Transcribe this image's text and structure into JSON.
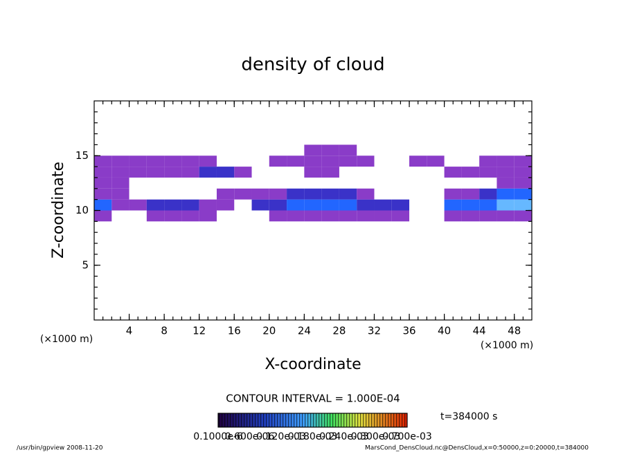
{
  "chart_data": {
    "type": "contour",
    "title": "density of cloud",
    "x_label": "X-coordinate",
    "y_label": "Z-coordinate",
    "x_unit": "(×1000 m)",
    "y_unit": "(×1000 m)",
    "contour_interval": "CONTOUR INTERVAL = 1.000E-04",
    "time_label": "t=384000 s",
    "footer_left": "/usr/bin/gpview  2008-11-20",
    "footer_right": "MarsCond_DensCloud.nc@DensCloud,x=0:50000,z=0:20000,t=384000",
    "xlim": [
      0,
      50
    ],
    "ylim": [
      0,
      20
    ],
    "xticks": [
      4,
      8,
      12,
      16,
      20,
      24,
      28,
      32,
      36,
      40,
      44,
      48
    ],
    "yticks": [
      5,
      10,
      15
    ],
    "x_edges": [
      0,
      2,
      4,
      6,
      8,
      10,
      12,
      14,
      16,
      18,
      20,
      22,
      24,
      26,
      28,
      30,
      32,
      34,
      36,
      38,
      40,
      42,
      44,
      46,
      48,
      50
    ],
    "y_edges": [
      9,
      10,
      11,
      12,
      13,
      14,
      15,
      16
    ],
    "levels": [
      0.0001,
      0.0002,
      0.0003,
      0.0004
    ],
    "level_colors": [
      "#8a3cc8",
      "#3a32c8",
      "#2266ff",
      "#66b8ff"
    ],
    "z": [
      [
        0.0001,
        null,
        null,
        0.0001,
        0.0001,
        0.0001,
        0.0001,
        null,
        null,
        null,
        0.0001,
        0.0001,
        0.0001,
        0.0001,
        0.0001,
        0.0001,
        0.0001,
        0.0001,
        null,
        null,
        0.0001,
        0.0001,
        0.0001,
        0.0001,
        0.0001
      ],
      [
        0.0003,
        0.0001,
        0.0001,
        0.0002,
        0.0002,
        0.0002,
        0.0001,
        0.0001,
        null,
        0.0002,
        0.0002,
        0.0003,
        0.0003,
        0.0003,
        0.0003,
        0.0002,
        0.0002,
        0.0002,
        null,
        null,
        0.0003,
        0.0003,
        0.0003,
        0.0004,
        0.0004
      ],
      [
        0.0001,
        0.0001,
        null,
        null,
        null,
        null,
        null,
        0.0001,
        0.0001,
        0.0001,
        0.0001,
        0.0002,
        0.0002,
        0.0002,
        0.0002,
        0.0001,
        null,
        null,
        null,
        null,
        0.0001,
        0.0001,
        0.0002,
        0.0003,
        0.0003
      ],
      [
        0.0001,
        0.0001,
        null,
        null,
        null,
        null,
        null,
        null,
        null,
        null,
        null,
        null,
        null,
        null,
        null,
        null,
        null,
        null,
        null,
        null,
        null,
        null,
        null,
        0.0001,
        0.0001
      ],
      [
        0.0001,
        0.0001,
        0.0001,
        0.0001,
        0.0001,
        0.0001,
        0.0002,
        0.0002,
        0.0001,
        null,
        null,
        null,
        0.0001,
        0.0001,
        null,
        null,
        null,
        null,
        null,
        null,
        0.0001,
        0.0001,
        0.0001,
        0.0001,
        0.0001
      ],
      [
        0.0001,
        0.0001,
        0.0001,
        0.0001,
        0.0001,
        0.0001,
        0.0001,
        null,
        null,
        null,
        0.0001,
        0.0001,
        0.0001,
        0.0001,
        0.0001,
        0.0001,
        null,
        null,
        0.0001,
        0.0001,
        null,
        null,
        0.0001,
        0.0001,
        0.0001
      ],
      [
        null,
        null,
        null,
        null,
        null,
        null,
        null,
        null,
        null,
        null,
        null,
        null,
        0.0001,
        0.0001,
        0.0001,
        null,
        null,
        null,
        null,
        null,
        null,
        null,
        null,
        null,
        null
      ]
    ],
    "colorbar_labels": [
      "0.1000e-6",
      "0.600e-06",
      "0.120e-03",
      "0.180e-03",
      "0.240e-03",
      "0.300e-03",
      "0.700e-03"
    ]
  }
}
